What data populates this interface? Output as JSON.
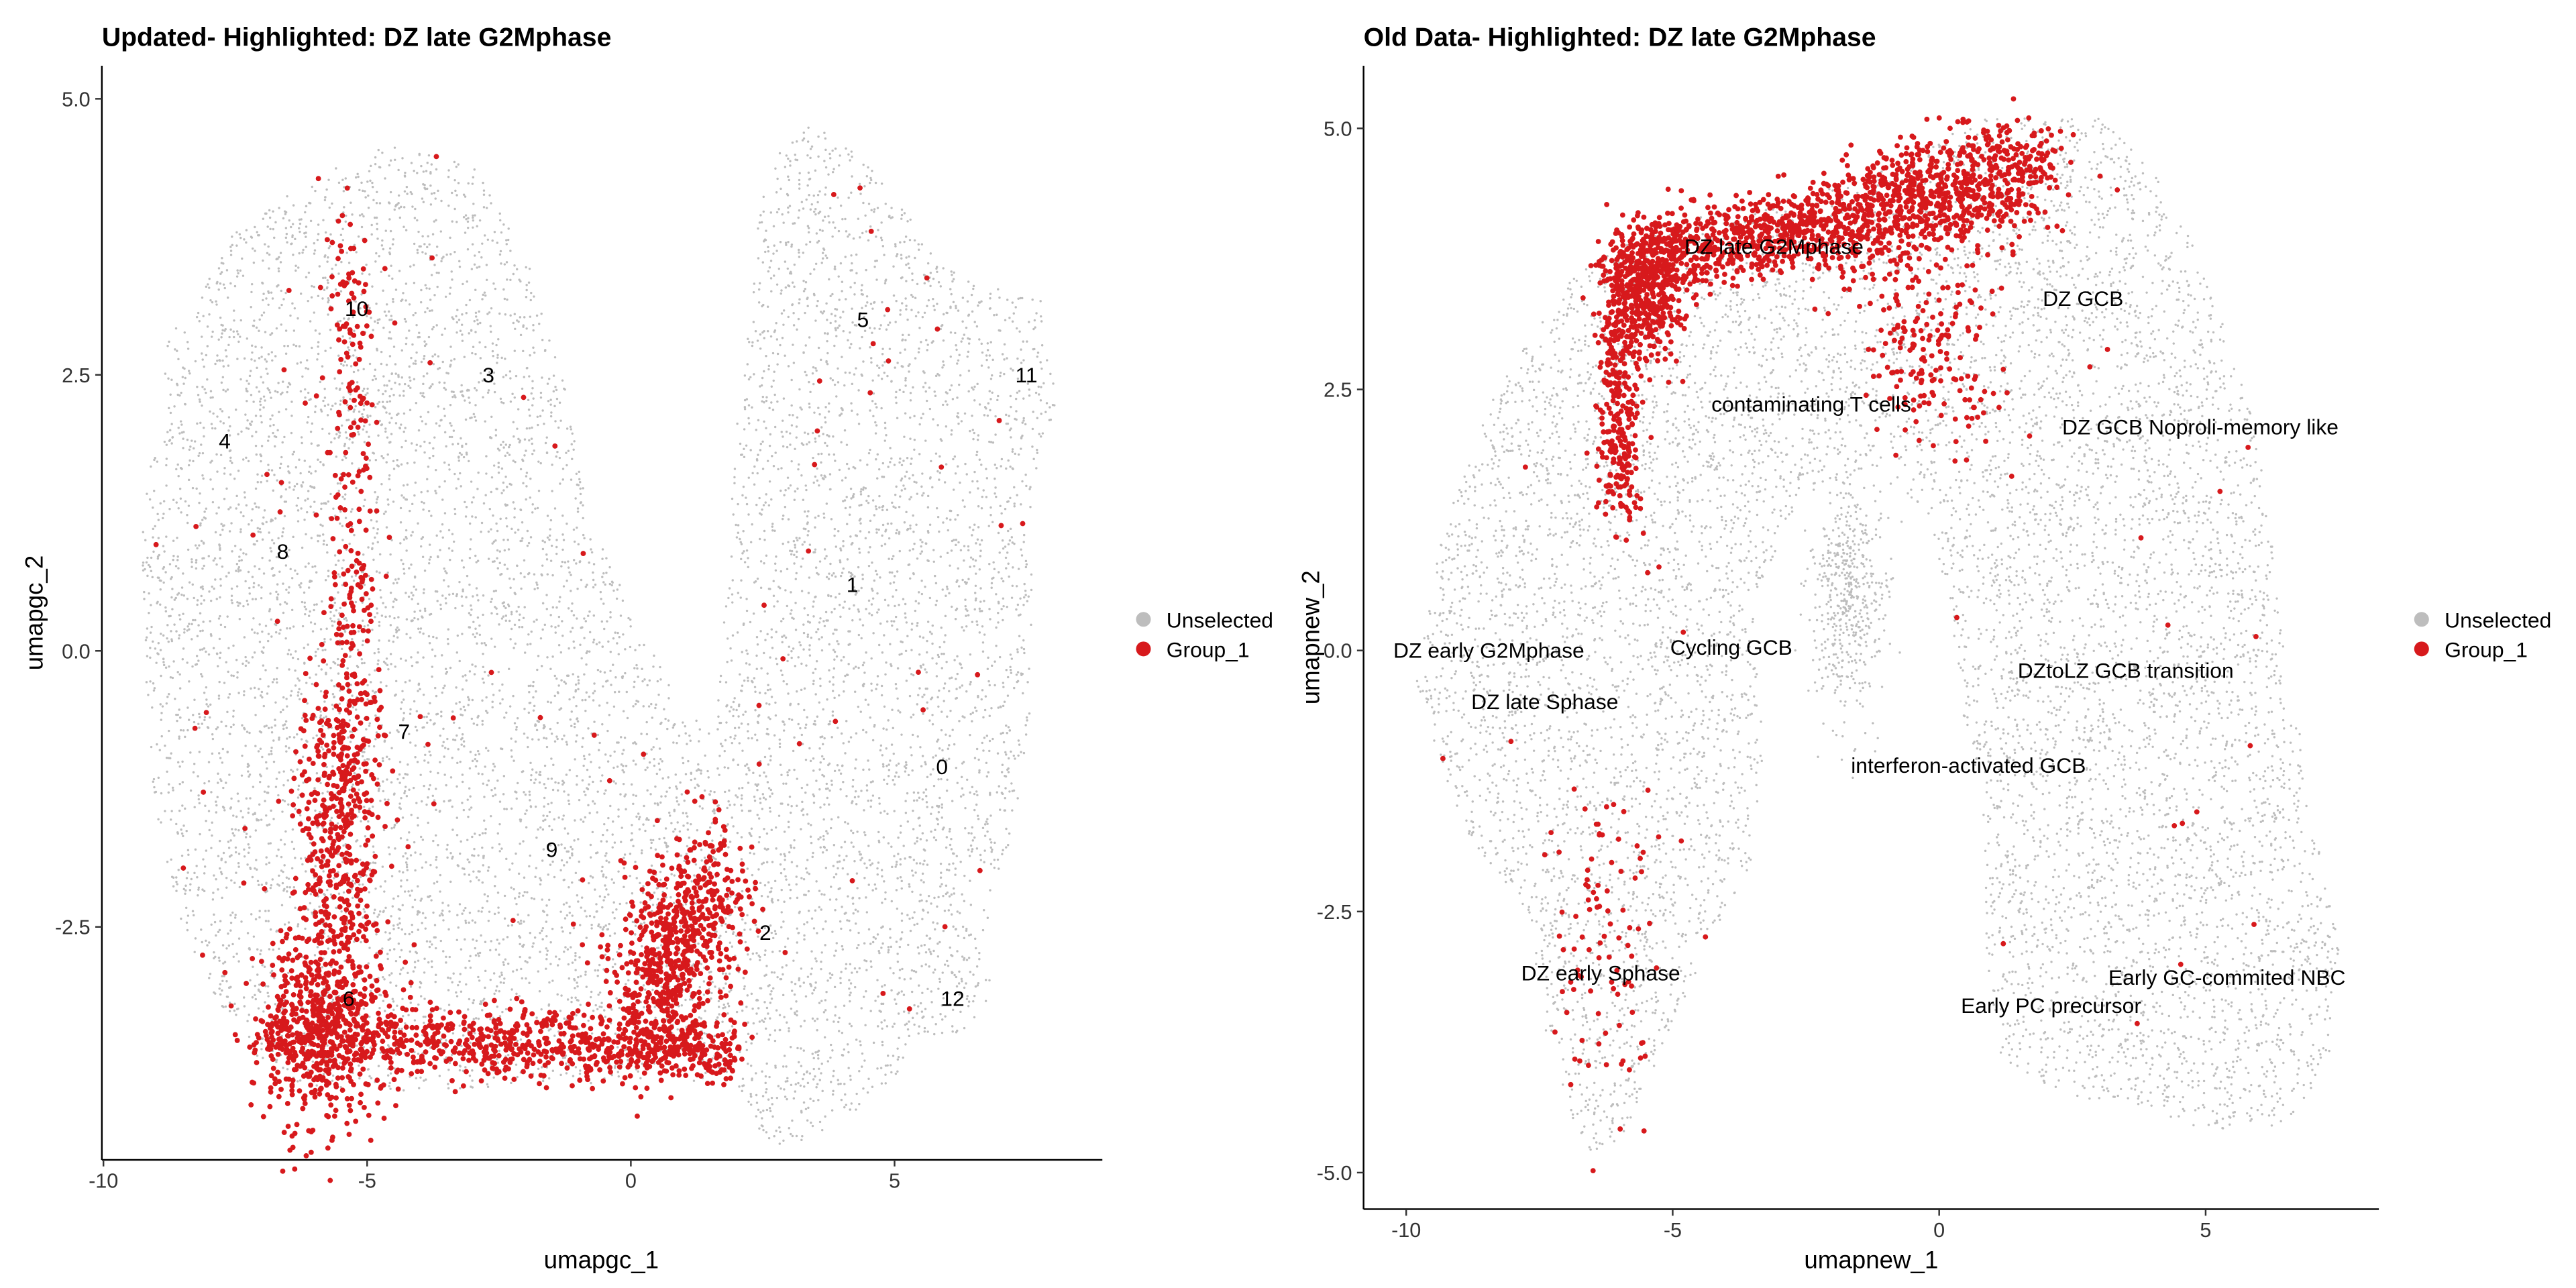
{
  "chart_data": [
    {
      "type": "scatter",
      "title": "Updated- Highlighted: DZ late G2Mphase",
      "xlabel": "umapgc_1",
      "ylabel": "umapgc_2",
      "xlim": [
        -10.03,
        8.94
      ],
      "ylim": [
        -4.61,
        5.3
      ],
      "xticks": [
        -10,
        -5,
        0,
        5
      ],
      "yticks": [
        -2.5,
        0.0,
        2.5,
        5.0
      ],
      "ytick_labels": [
        "-2.5",
        "0.0",
        "2.5",
        "5.0"
      ],
      "legend": {
        "placement": "right",
        "entries": [
          {
            "label": "Unselected",
            "color": "#bdbdbd"
          },
          {
            "label": "Group_1",
            "color": "#d7191c"
          }
        ]
      },
      "cluster_labels": [
        {
          "text": "10",
          "x": -5.2,
          "y": 3.1
        },
        {
          "text": "3",
          "x": -2.7,
          "y": 2.5
        },
        {
          "text": "4",
          "x": -7.7,
          "y": 1.9
        },
        {
          "text": "8",
          "x": -6.6,
          "y": 0.9
        },
        {
          "text": "5",
          "x": 4.4,
          "y": 3.0
        },
        {
          "text": "11",
          "x": 7.5,
          "y": 2.5
        },
        {
          "text": "1",
          "x": 4.2,
          "y": 0.6
        },
        {
          "text": "0",
          "x": 5.9,
          "y": -1.05
        },
        {
          "text": "7",
          "x": -4.3,
          "y": -0.73
        },
        {
          "text": "9",
          "x": -1.5,
          "y": -1.8
        },
        {
          "text": "2",
          "x": 2.55,
          "y": -2.55
        },
        {
          "text": "6",
          "x": -5.35,
          "y": -3.15
        },
        {
          "text": "12",
          "x": 6.1,
          "y": -3.15
        }
      ],
      "unselected_region": [
        [
          -9.2,
          -0.5
        ],
        [
          -9.3,
          1
        ],
        [
          -8.8,
          2.8
        ],
        [
          -7.5,
          3.8
        ],
        [
          -6,
          4.3
        ],
        [
          -4.5,
          4.6
        ],
        [
          -3,
          4.4
        ],
        [
          -2,
          3.6
        ],
        [
          -1.3,
          2.5
        ],
        [
          -0.8,
          1.2
        ],
        [
          0.2,
          0.2
        ],
        [
          1,
          -0.5
        ],
        [
          1.6,
          -0.8
        ],
        [
          1.8,
          0.5
        ],
        [
          2,
          2
        ],
        [
          2.3,
          3.5
        ],
        [
          2.5,
          4.4
        ],
        [
          3.5,
          4.8
        ],
        [
          4.5,
          4.4
        ],
        [
          5.8,
          3.6
        ],
        [
          6.8,
          3.3
        ],
        [
          7.8,
          3.2
        ],
        [
          8.1,
          2.3
        ],
        [
          7.6,
          1.5
        ],
        [
          7.6,
          -0.5
        ],
        [
          7.3,
          -1.5
        ],
        [
          6.8,
          -2.5
        ],
        [
          6.8,
          -3.2
        ],
        [
          6.2,
          -3.5
        ],
        [
          5.5,
          -3.5
        ],
        [
          4.8,
          -4
        ],
        [
          3.8,
          -4.3
        ],
        [
          3,
          -4.5
        ],
        [
          2.5,
          -4.4
        ],
        [
          2,
          -3.9
        ],
        [
          0,
          -3.9
        ],
        [
          -5,
          -4.0
        ],
        [
          -6.5,
          -3.9
        ],
        [
          -7.5,
          -3.5
        ],
        [
          -8.5,
          -2.5
        ],
        [
          -9,
          -1.5
        ]
      ],
      "unselected_count": 9000,
      "unselected_blobs": [],
      "group_1": [
        {
          "from": [
            -5.3,
            3.8
          ],
          "to": [
            -5.3,
            -2.5
          ],
          "spread": 0.25,
          "count": 300
        },
        {
          "from": [
            -5.5,
            -0.5
          ],
          "to": [
            -5.6,
            -3.0
          ],
          "spread": 0.4,
          "count": 400
        },
        {
          "from": [
            -7.0,
            -3.5
          ],
          "to": [
            2.0,
            -3.6
          ],
          "spread": 0.2,
          "count": 900
        },
        {
          "from": [
            -5.8,
            -3.4
          ],
          "to": [
            -5.8,
            -3.4
          ],
          "spread": 0.6,
          "count": 500
        },
        {
          "from": [
            0.3,
            -3.3
          ],
          "to": [
            1.5,
            -2.1
          ],
          "spread": 0.45,
          "count": 700
        }
      ],
      "group_1_scattered": 90
    },
    {
      "type": "scatter",
      "title": "Old Data- Highlighted: DZ late G2Mphase",
      "xlabel": "umapnew_1",
      "ylabel": "umapnew_2",
      "xlim": [
        -10.8,
        8.25
      ],
      "ylim": [
        -5.35,
        5.6
      ],
      "xticks": [
        -10,
        -5,
        0,
        5
      ],
      "yticks": [
        -5.0,
        -2.5,
        0.0,
        2.5,
        5.0
      ],
      "ytick_labels": [
        "-5.0",
        "-2.5",
        "0.0",
        "2.5",
        "5.0"
      ],
      "legend": {
        "placement": "right",
        "entries": [
          {
            "label": "Unselected",
            "color": "#bdbdbd"
          },
          {
            "label": "Group_1",
            "color": "#d7191c"
          }
        ]
      },
      "cluster_labels": [
        {
          "text": "DZ late G2Mphase",
          "x": -3.1,
          "y": 3.87
        },
        {
          "text": "DZ GCB",
          "x": 2.7,
          "y": 3.37
        },
        {
          "text": "contaminating T cells",
          "x": -2.4,
          "y": 2.36
        },
        {
          "text": "DZ GCB Noproli-memory like",
          "x": 4.9,
          "y": 2.14
        },
        {
          "text": "DZ early G2Mphase",
          "x": -8.45,
          "y": 0.0
        },
        {
          "text": "Cycling GCB",
          "x": -3.9,
          "y": 0.03
        },
        {
          "text": "DZ late Sphase",
          "x": -7.4,
          "y": -0.49
        },
        {
          "text": "DZtoLZ GCB transition",
          "x": 3.5,
          "y": -0.19
        },
        {
          "text": "interferon-activated GCB",
          "x": 0.55,
          "y": -1.1
        },
        {
          "text": "DZ early  Sphase",
          "x": -6.35,
          "y": -3.09
        },
        {
          "text": "Early GC-commited NBC",
          "x": 5.4,
          "y": -3.13
        },
        {
          "text": "Early PC precursor",
          "x": 2.1,
          "y": -3.4
        }
      ],
      "unselected_region": [
        [
          -9.8,
          -0.3
        ],
        [
          -9.3,
          1.2
        ],
        [
          -8.3,
          2.5
        ],
        [
          -7,
          3.5
        ],
        [
          -5.5,
          4.1
        ],
        [
          -3,
          4.3
        ],
        [
          -1,
          4.6
        ],
        [
          0.8,
          5.1
        ],
        [
          3,
          5.1
        ],
        [
          4,
          4.6
        ],
        [
          5,
          3.7
        ],
        [
          6,
          2
        ],
        [
          6.5,
          0
        ],
        [
          7,
          -1.5
        ],
        [
          7.5,
          -2.8
        ],
        [
          7.3,
          -4
        ],
        [
          6.5,
          -4.6
        ],
        [
          5,
          -4.6
        ],
        [
          3.5,
          -4.3
        ],
        [
          2.5,
          -4.3
        ],
        [
          1.2,
          -4
        ],
        [
          0.9,
          -3
        ],
        [
          0.8,
          -1.5
        ],
        [
          0.5,
          -0.8
        ],
        [
          0.2,
          0.5
        ],
        [
          -0.2,
          1.2
        ],
        [
          -1,
          1.8
        ],
        [
          -2.5,
          1.5
        ],
        [
          -3.5,
          0.5
        ],
        [
          -3.3,
          -1
        ],
        [
          -3.5,
          -2
        ],
        [
          -4.5,
          -3
        ],
        [
          -5.2,
          -3.8
        ],
        [
          -5.8,
          -4.6
        ],
        [
          -6.5,
          -4.9
        ],
        [
          -7.3,
          -4
        ],
        [
          -7.7,
          -2.5
        ],
        [
          -9,
          -1.7
        ]
      ],
      "unselected_count": 8500,
      "unselected_blobs": [
        {
          "center": [
            -1.7,
            0.5
          ],
          "spread": 0.35,
          "count": 500
        }
      ],
      "group_1": [
        {
          "from": [
            -6.0,
            3.7
          ],
          "to": [
            -2.0,
            4.1
          ],
          "spread": 0.25,
          "count": 700
        },
        {
          "from": [
            -2.0,
            4.1
          ],
          "to": [
            1.8,
            4.6
          ],
          "spread": 0.35,
          "count": 900
        },
        {
          "from": [
            -5.5,
            3.4
          ],
          "to": [
            -5.5,
            3.4
          ],
          "spread": 0.4,
          "count": 400
        },
        {
          "from": [
            -6.0,
            3.3
          ],
          "to": [
            -6.0,
            1.3
          ],
          "spread": 0.2,
          "count": 300
        },
        {
          "from": [
            -1.0,
            3.5
          ],
          "to": [
            0.5,
            2.5
          ],
          "spread": 0.6,
          "count": 200
        },
        {
          "from": [
            -6.5,
            -1.5
          ],
          "to": [
            -6.0,
            -4.2
          ],
          "spread": 0.5,
          "count": 90
        }
      ],
      "group_1_scattered": 40
    }
  ]
}
